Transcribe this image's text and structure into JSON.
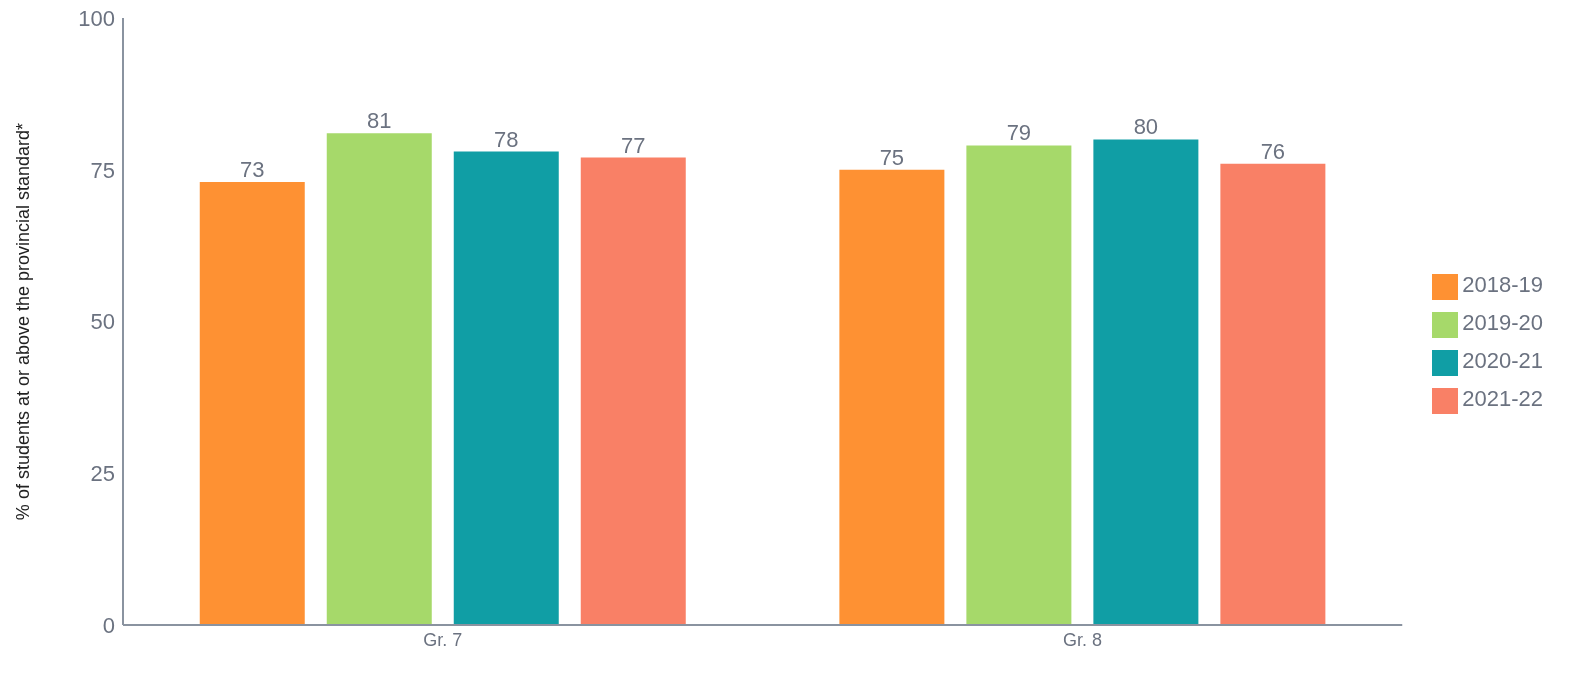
{
  "chart_data": {
    "type": "bar",
    "ylabel": "% of students at or above the provincial standard*",
    "categories": [
      "Gr. 7",
      "Gr. 8"
    ],
    "series": [
      {
        "name": "2018-19",
        "color": "#fe9133",
        "values": [
          73,
          75
        ]
      },
      {
        "name": "2019-20",
        "color": "#a6d96a",
        "values": [
          81,
          79
        ]
      },
      {
        "name": "2020-21",
        "color": "#109ea5",
        "values": [
          78,
          80
        ]
      },
      {
        "name": "2021-22",
        "color": "#f98066",
        "values": [
          77,
          76
        ]
      }
    ],
    "ylim": [
      0,
      100
    ],
    "yticks": [
      0,
      25,
      50,
      75,
      100
    ],
    "grid": false,
    "legend": "right",
    "data_labels": true
  }
}
